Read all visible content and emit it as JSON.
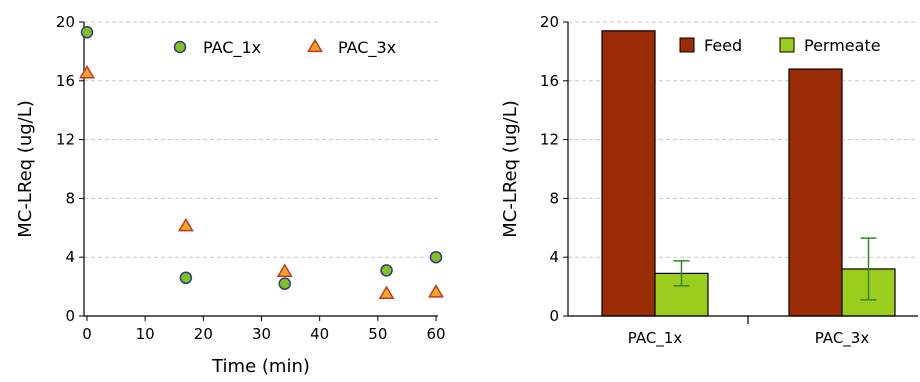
{
  "chart_data": [
    {
      "type": "scatter",
      "xlabel": "Time (min)",
      "ylabel": "MC-LReq (ug/L)",
      "xlim": [
        0,
        60
      ],
      "ylim": [
        0,
        20
      ],
      "xticks": [
        0,
        10,
        20,
        30,
        40,
        50,
        60
      ],
      "yticks": [
        0,
        4,
        8,
        12,
        16,
        20
      ],
      "grid": "horizontal-dashed",
      "legend_position": "top-right",
      "series": [
        {
          "name": "PAC_1x",
          "marker": "circle",
          "color": "#7fc31c",
          "points": [
            {
              "x": 0,
              "y": 19.3
            },
            {
              "x": 17,
              "y": 2.6
            },
            {
              "x": 34,
              "y": 2.2
            },
            {
              "x": 51.5,
              "y": 3.1
            },
            {
              "x": 60,
              "y": 4.0
            }
          ]
        },
        {
          "name": "PAC_3x",
          "marker": "triangle",
          "color": "#f5a623",
          "points": [
            {
              "x": 0,
              "y": 16.5
            },
            {
              "x": 17,
              "y": 6.1
            },
            {
              "x": 34,
              "y": 3.0
            },
            {
              "x": 51.5,
              "y": 1.5
            },
            {
              "x": 60,
              "y": 1.6
            }
          ]
        }
      ]
    },
    {
      "type": "bar",
      "ylabel": "MC-LReq (ug/L)",
      "ylim": [
        0,
        20
      ],
      "yticks": [
        0,
        4,
        8,
        12,
        16,
        20
      ],
      "grid": "horizontal-dashed",
      "legend_position": "top-right",
      "categories": [
        "PAC_1x",
        "PAC_3x"
      ],
      "series": [
        {
          "name": "Feed",
          "color": "#9b2d06",
          "values": [
            19.4,
            16.8
          ],
          "error": [
            null,
            null
          ]
        },
        {
          "name": "Permeate",
          "color": "#9acd1c",
          "values": [
            2.9,
            3.2
          ],
          "error": [
            0.85,
            2.1
          ]
        }
      ]
    }
  ]
}
